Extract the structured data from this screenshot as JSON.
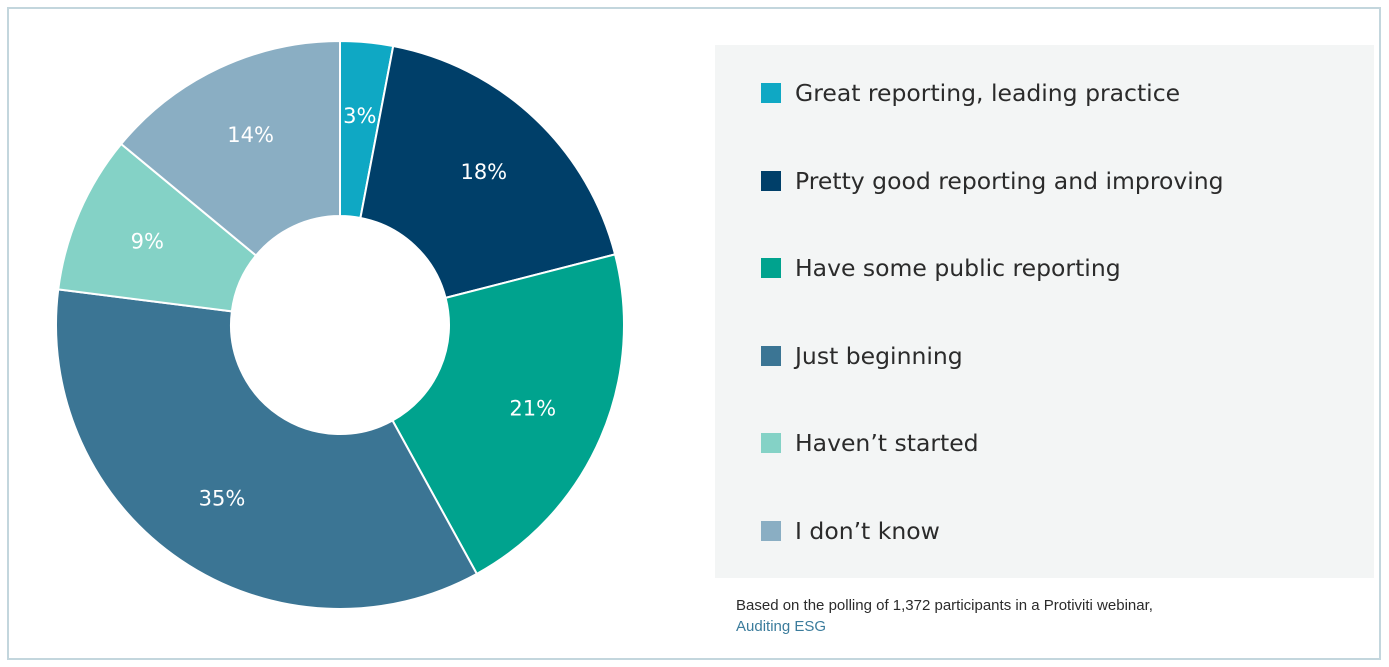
{
  "chart_data": {
    "type": "pie",
    "donut": true,
    "title": "",
    "categories": [
      "Great reporting, leading practice",
      "Pretty good reporting and improving",
      "Have some public reporting",
      "Just beginning",
      "Haven’t started",
      "I don’t know"
    ],
    "values": [
      3,
      18,
      21,
      35,
      9,
      14
    ],
    "value_labels": [
      "3%",
      "18%",
      "21%",
      "35%",
      "9%",
      "14%"
    ],
    "colors": [
      "#0fa8c4",
      "#003f69",
      "#00a38e",
      "#3b7594",
      "#84d2c6",
      "#8aaec3"
    ],
    "legend_position": "right"
  },
  "source": {
    "text": "Based on the polling of 1,372 participants in a Protiviti webinar,",
    "link_text": "Auditing ESG"
  }
}
